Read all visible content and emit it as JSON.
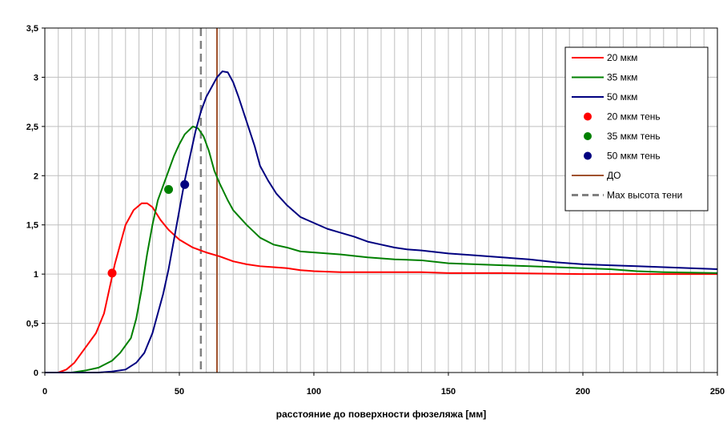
{
  "chart_data": {
    "type": "line",
    "title": "",
    "xlabel": "расстояние до поверхности фюзеляжа [мм]",
    "ylabel": "",
    "xlim": [
      0,
      250
    ],
    "ylim": [
      0,
      3.5
    ],
    "x_ticks": [
      {
        "value": 0,
        "label": "0"
      },
      {
        "value": 50,
        "label": "50"
      },
      {
        "value": 100,
        "label": "100"
      },
      {
        "value": 150,
        "label": "150"
      },
      {
        "value": 200,
        "label": "200"
      },
      {
        "value": 250,
        "label": "250"
      }
    ],
    "y_ticks": [
      {
        "value": 0,
        "label": "0"
      },
      {
        "value": 0.5,
        "label": "0,5"
      },
      {
        "value": 1,
        "label": "1"
      },
      {
        "value": 1.5,
        "label": "1,5"
      },
      {
        "value": 2,
        "label": "2"
      },
      {
        "value": 2.5,
        "label": "2,5"
      },
      {
        "value": 3,
        "label": "3"
      },
      {
        "value": 3.5,
        "label": "3,5"
      }
    ],
    "grid": {
      "vertical_step": 5,
      "horizontal_step": 0.5
    },
    "legend_position": "top-right",
    "series": [
      {
        "name": "20 мкм",
        "color": "#ff0000",
        "points": [
          [
            0,
            0
          ],
          [
            5,
            0
          ],
          [
            8,
            0.03
          ],
          [
            11,
            0.1
          ],
          [
            15,
            0.25
          ],
          [
            19,
            0.4
          ],
          [
            22,
            0.6
          ],
          [
            24,
            0.85
          ],
          [
            26,
            1.1
          ],
          [
            28,
            1.3
          ],
          [
            30,
            1.5
          ],
          [
            33,
            1.65
          ],
          [
            36,
            1.72
          ],
          [
            38,
            1.72
          ],
          [
            40,
            1.68
          ],
          [
            43,
            1.55
          ],
          [
            46,
            1.45
          ],
          [
            50,
            1.35
          ],
          [
            55,
            1.27
          ],
          [
            60,
            1.22
          ],
          [
            65,
            1.18
          ],
          [
            70,
            1.13
          ],
          [
            75,
            1.1
          ],
          [
            80,
            1.08
          ],
          [
            85,
            1.07
          ],
          [
            90,
            1.06
          ],
          [
            95,
            1.04
          ],
          [
            100,
            1.03
          ],
          [
            110,
            1.02
          ],
          [
            120,
            1.02
          ],
          [
            140,
            1.02
          ],
          [
            150,
            1.01
          ],
          [
            170,
            1.01
          ],
          [
            200,
            1.0
          ],
          [
            250,
            1.0
          ]
        ]
      },
      {
        "name": "35 мкм",
        "color": "#008000",
        "points": [
          [
            0,
            0
          ],
          [
            10,
            0
          ],
          [
            15,
            0.02
          ],
          [
            20,
            0.05
          ],
          [
            25,
            0.12
          ],
          [
            28,
            0.2
          ],
          [
            32,
            0.35
          ],
          [
            34,
            0.55
          ],
          [
            36,
            0.85
          ],
          [
            38,
            1.2
          ],
          [
            40,
            1.5
          ],
          [
            42,
            1.75
          ],
          [
            44,
            1.9
          ],
          [
            46,
            2.05
          ],
          [
            48,
            2.2
          ],
          [
            50,
            2.32
          ],
          [
            52,
            2.42
          ],
          [
            55,
            2.5
          ],
          [
            57,
            2.48
          ],
          [
            59,
            2.4
          ],
          [
            61,
            2.25
          ],
          [
            63,
            2.05
          ],
          [
            65,
            1.92
          ],
          [
            68,
            1.75
          ],
          [
            70,
            1.65
          ],
          [
            75,
            1.5
          ],
          [
            80,
            1.37
          ],
          [
            85,
            1.3
          ],
          [
            90,
            1.27
          ],
          [
            95,
            1.23
          ],
          [
            100,
            1.22
          ],
          [
            110,
            1.2
          ],
          [
            120,
            1.17
          ],
          [
            130,
            1.15
          ],
          [
            140,
            1.14
          ],
          [
            150,
            1.11
          ],
          [
            160,
            1.1
          ],
          [
            170,
            1.09
          ],
          [
            180,
            1.08
          ],
          [
            190,
            1.07
          ],
          [
            200,
            1.06
          ],
          [
            210,
            1.05
          ],
          [
            220,
            1.03
          ],
          [
            230,
            1.02
          ],
          [
            250,
            1.01
          ]
        ]
      },
      {
        "name": "50 мкм",
        "color": "#000080",
        "points": [
          [
            0,
            0
          ],
          [
            20,
            0
          ],
          [
            25,
            0.01
          ],
          [
            30,
            0.03
          ],
          [
            34,
            0.1
          ],
          [
            37,
            0.2
          ],
          [
            40,
            0.4
          ],
          [
            42,
            0.6
          ],
          [
            44,
            0.8
          ],
          [
            46,
            1.05
          ],
          [
            48,
            1.35
          ],
          [
            50,
            1.65
          ],
          [
            52,
            1.95
          ],
          [
            54,
            2.2
          ],
          [
            56,
            2.45
          ],
          [
            58,
            2.65
          ],
          [
            60,
            2.8
          ],
          [
            62,
            2.9
          ],
          [
            64,
            3.0
          ],
          [
            66,
            3.06
          ],
          [
            68,
            3.05
          ],
          [
            70,
            2.95
          ],
          [
            72,
            2.8
          ],
          [
            75,
            2.55
          ],
          [
            78,
            2.3
          ],
          [
            80,
            2.1
          ],
          [
            83,
            1.95
          ],
          [
            86,
            1.82
          ],
          [
            90,
            1.7
          ],
          [
            95,
            1.58
          ],
          [
            100,
            1.52
          ],
          [
            105,
            1.46
          ],
          [
            110,
            1.42
          ],
          [
            115,
            1.38
          ],
          [
            120,
            1.33
          ],
          [
            125,
            1.3
          ],
          [
            130,
            1.27
          ],
          [
            135,
            1.25
          ],
          [
            140,
            1.24
          ],
          [
            150,
            1.21
          ],
          [
            160,
            1.19
          ],
          [
            170,
            1.17
          ],
          [
            180,
            1.15
          ],
          [
            190,
            1.12
          ],
          [
            200,
            1.1
          ],
          [
            210,
            1.09
          ],
          [
            220,
            1.08
          ],
          [
            230,
            1.07
          ],
          [
            240,
            1.06
          ],
          [
            250,
            1.05
          ]
        ]
      },
      {
        "name": "20 мкм тень",
        "color": "#ff0000",
        "points": [
          [
            25,
            1.01
          ]
        ]
      },
      {
        "name": "35 мкм тень",
        "color": "#008000",
        "points": [
          [
            46,
            1.86
          ]
        ]
      },
      {
        "name": "50 мкм тень",
        "color": "#000080",
        "points": [
          [
            52,
            1.91
          ]
        ]
      },
      {
        "name": "ДО",
        "color": "#a0522d",
        "x": 64
      },
      {
        "name": "Max высота тени",
        "color": "#808080",
        "x": 58
      }
    ]
  }
}
